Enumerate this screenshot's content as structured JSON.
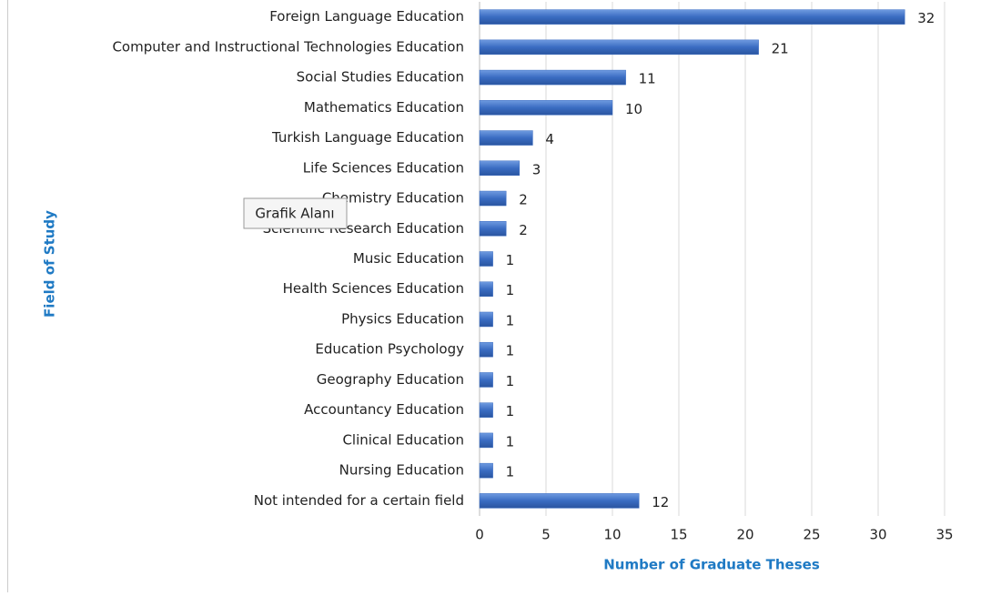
{
  "chart_data": {
    "type": "bar",
    "orientation": "horizontal",
    "categories": [
      "Foreign Language Education",
      "Computer and Instructional Technologies Education",
      "Social Studies Education",
      "Mathematics Education",
      "Turkish Language Education",
      "Life Sciences Education",
      "Chemistry Education",
      "Scientific Research Education",
      "Music Education",
      "Health Sciences Education",
      "Physics Education",
      "Education Psychology",
      "Geography Education",
      "Accountancy Education",
      "Clinical Education",
      "Nursing Education",
      "Not intended for a certain field"
    ],
    "values": [
      32,
      21,
      11,
      10,
      4,
      3,
      2,
      2,
      1,
      1,
      1,
      1,
      1,
      1,
      1,
      1,
      12
    ],
    "color": "#3a6cc2",
    "xlim": [
      0,
      35
    ],
    "xticks": [
      0,
      5,
      10,
      15,
      20,
      25,
      30,
      35
    ],
    "grid": true,
    "x_label": "Number of Graduate Theses",
    "y_label": "Field of Study"
  },
  "tooltip": "Grafik Alanı"
}
